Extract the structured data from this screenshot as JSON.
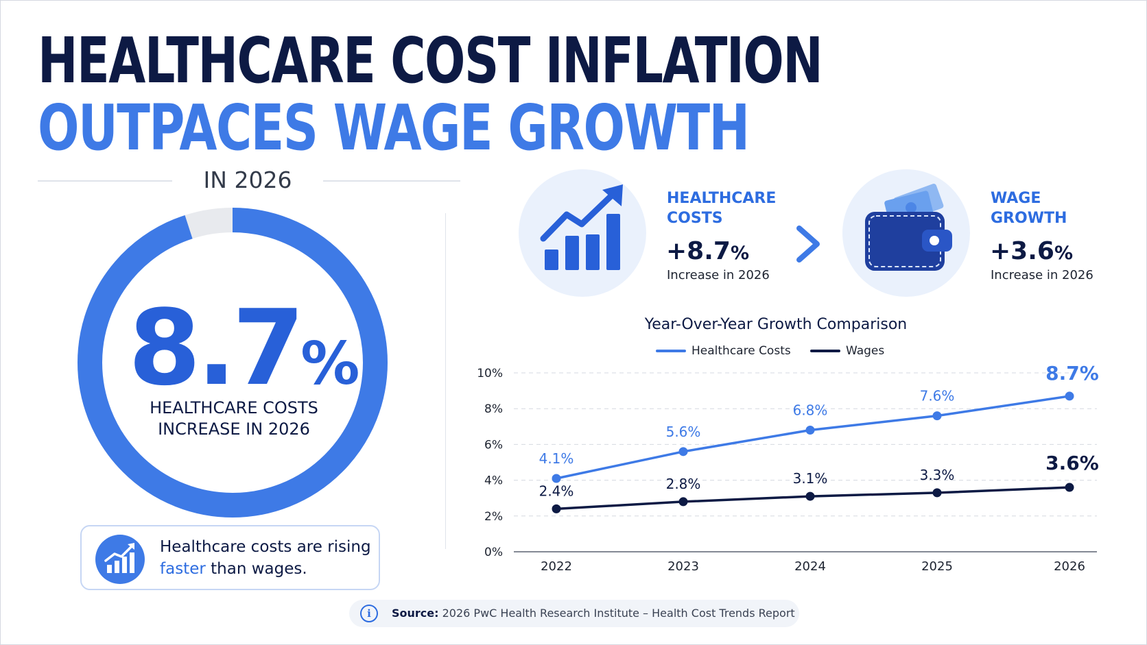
{
  "header": {
    "title_line1": "HEALTHCARE COST INFLATION",
    "title_line2": "OUTPACES WAGE GROWTH",
    "subtitle": "IN 2026"
  },
  "donut": {
    "value": "8.7",
    "unit": "%",
    "fill_fraction": 0.95,
    "label_line1": "HEALTHCARE COSTS",
    "label_line2": "INCREASE IN 2026"
  },
  "callout": {
    "icon": "growth-chart-icon",
    "text_before": "Healthcare costs are rising",
    "text_highlight": "faster",
    "text_after": "than wages."
  },
  "stats": {
    "healthcare": {
      "icon": "bar-chart-trend-up-icon",
      "title_line1": "HEALTHCARE",
      "title_line2": "COSTS",
      "value": "+8.7",
      "unit": "%",
      "sub": "Increase in 2026"
    },
    "separator_icon": "chevron-right-icon",
    "wages": {
      "icon": "wallet-icon",
      "title_line1": "WAGE",
      "title_line2": "GROWTH",
      "value": "+3.6",
      "unit": "%",
      "sub": "Increase in 2026"
    }
  },
  "chart_data": {
    "type": "line",
    "title": "Year-Over-Year Growth Comparison",
    "x": [
      "2022",
      "2023",
      "2024",
      "2025",
      "2026"
    ],
    "y_ticks": [
      "0%",
      "2%",
      "4%",
      "6%",
      "8%",
      "10%"
    ],
    "ylim": [
      0,
      10
    ],
    "grid": true,
    "legend_position": "top-center",
    "series": [
      {
        "name": "Healthcare Costs",
        "color": "#3e7ae6",
        "values": [
          4.1,
          5.6,
          6.8,
          7.6,
          8.7
        ],
        "labels": [
          "4.1%",
          "5.6%",
          "6.8%",
          "7.6%",
          "8.7%"
        ]
      },
      {
        "name": "Wages",
        "color": "#0d1a44",
        "values": [
          2.4,
          2.8,
          3.1,
          3.3,
          3.6
        ],
        "labels": [
          "2.4%",
          "2.8%",
          "3.1%",
          "3.3%",
          "3.6%"
        ]
      }
    ]
  },
  "source": {
    "label": "Source:",
    "text": "2026 PwC Health Research Institute – Health Cost Trends Report"
  },
  "colors": {
    "navy": "#0d1a44",
    "accent_blue": "#3e7ae6",
    "light_blue_bg": "#eaf1fc",
    "track_gray": "#e8eaee"
  }
}
